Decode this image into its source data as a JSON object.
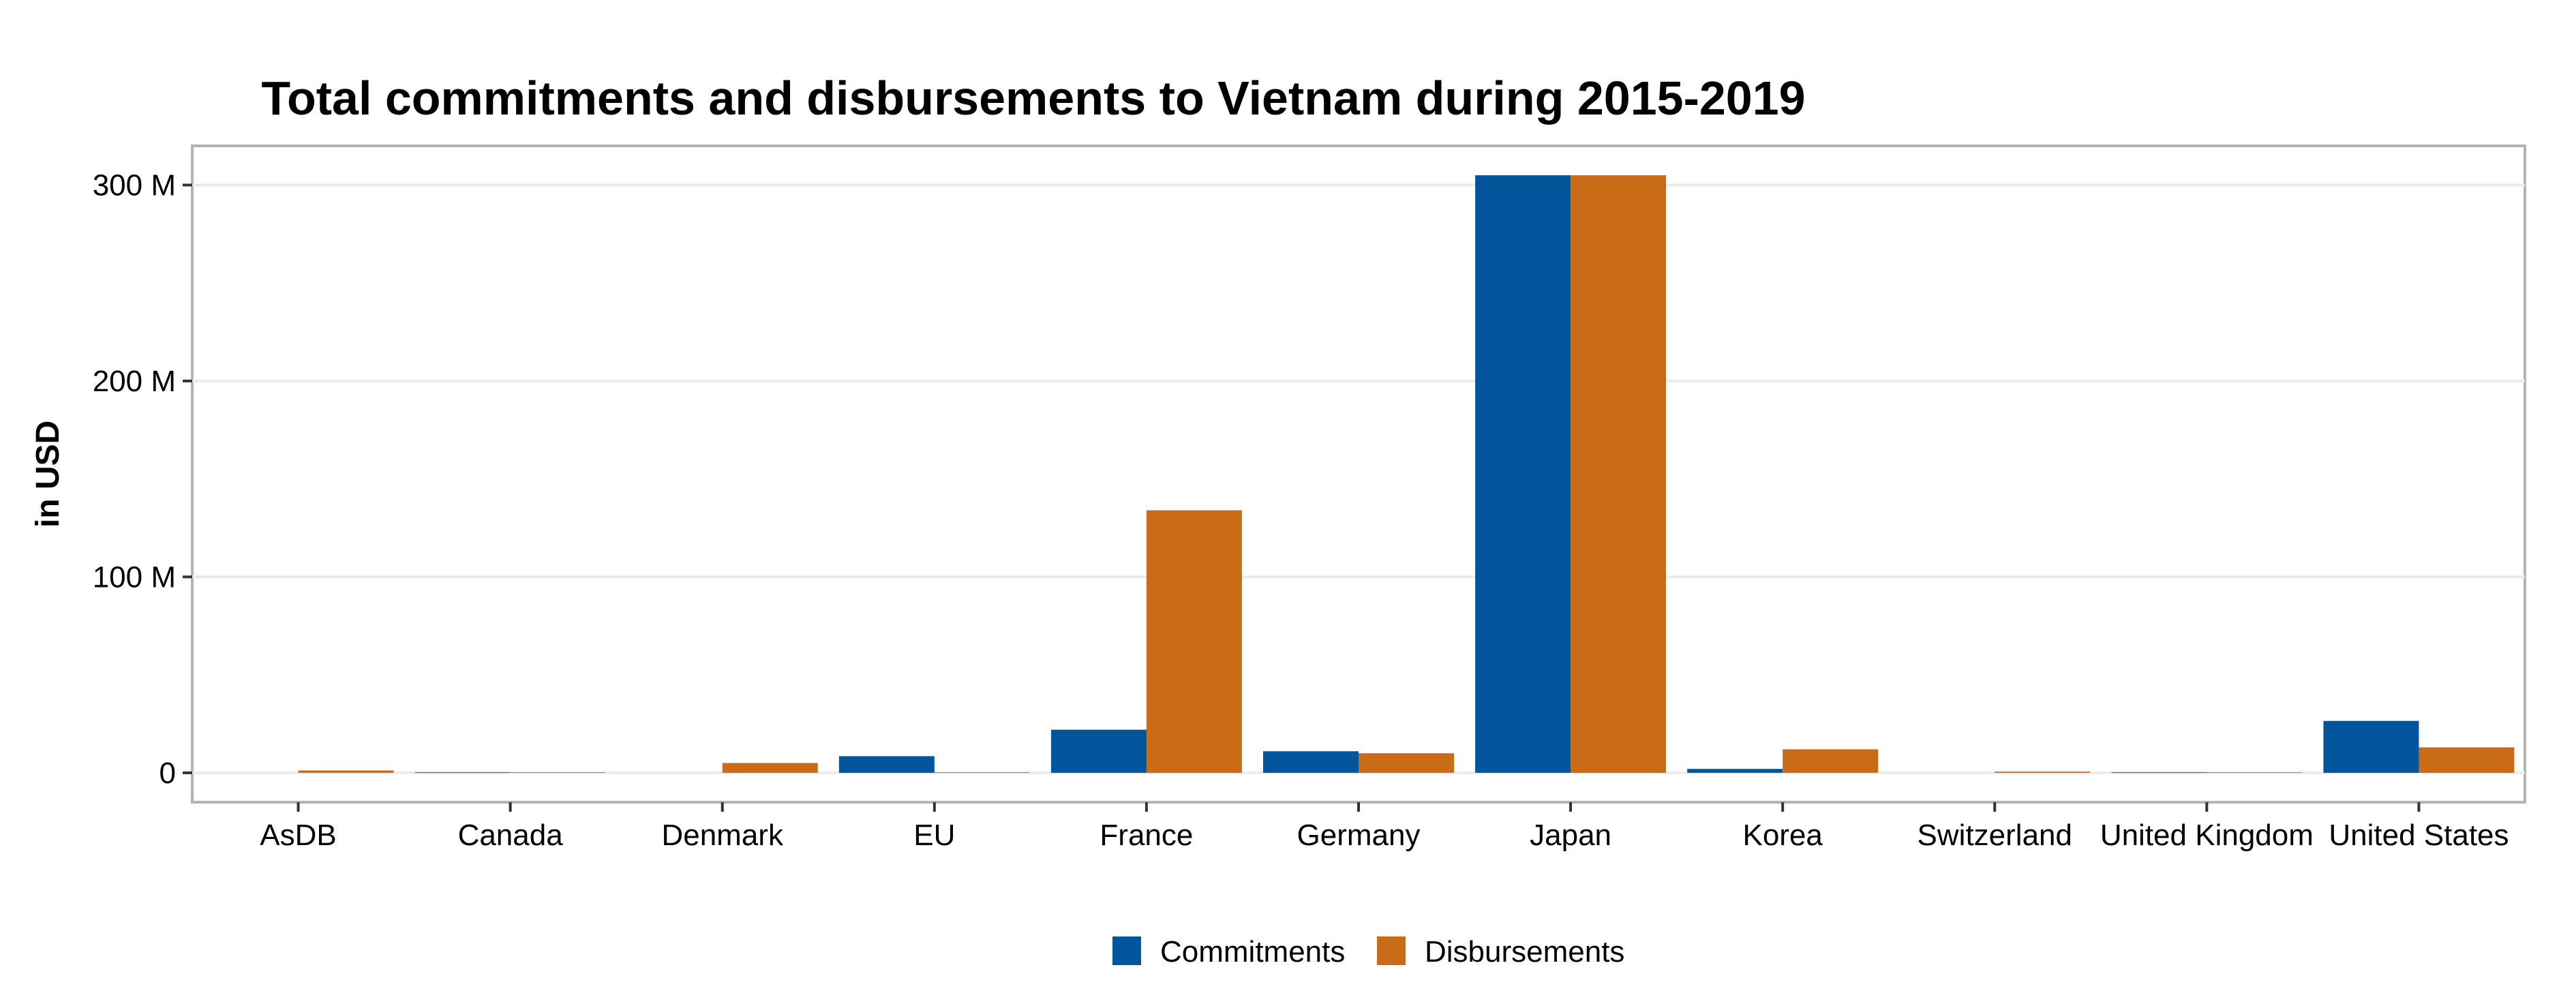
{
  "chart_data": {
    "type": "bar",
    "title": "Total commitments and disbursements to Vietnam during 2015-2019",
    "xlabel": "",
    "ylabel": "in USD",
    "categories": [
      "AsDB",
      "Canada",
      "Denmark",
      "EU",
      "France",
      "Germany",
      "Japan",
      "Korea",
      "Switzerland",
      "United Kingdom",
      "United States"
    ],
    "series": [
      {
        "name": "Commitments",
        "color": "#00559B",
        "values": [
          0,
          300000,
          0,
          8500000,
          22000000,
          11000000,
          305000000,
          2000000,
          0,
          300000,
          26500000
        ]
      },
      {
        "name": "Disbursements",
        "color": "#C96B17",
        "values": [
          1200000,
          300000,
          5000000,
          300000,
          134000000,
          10000000,
          305000000,
          12000000,
          600000,
          300000,
          13000000
        ]
      }
    ],
    "y_ticks": [
      {
        "value": 0,
        "label": "0"
      },
      {
        "value": 100000000,
        "label": "100 M"
      },
      {
        "value": 200000000,
        "label": "200 M"
      },
      {
        "value": 300000000,
        "label": "300 M"
      }
    ],
    "ylim": [
      -15000000,
      320000000
    ],
    "grid": true,
    "legend_position": "bottom"
  }
}
